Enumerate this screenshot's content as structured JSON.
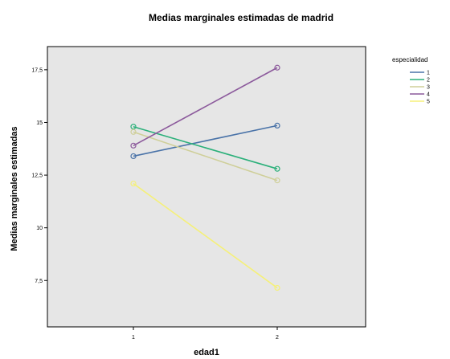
{
  "chart_data": {
    "type": "line",
    "title": "Medias marginales estimadas de madrid",
    "xlabel": "edad1",
    "ylabel": "Medias marginales estimadas",
    "categories": [
      "1",
      "2"
    ],
    "yticks": [
      "7,5",
      "10",
      "12,5",
      "15",
      "17,5"
    ],
    "ytick_values": [
      7.5,
      10,
      12.5,
      15,
      17.5
    ],
    "ylim": [
      5.3,
      18.6
    ],
    "legend_title": "especialidad",
    "legend_position": "right",
    "plot_background": "#e6e6e6",
    "series": [
      {
        "name": "1",
        "color": "#4a73a8",
        "values": [
          13.4,
          14.85
        ]
      },
      {
        "name": "2",
        "color": "#2bb07a",
        "values": [
          14.8,
          12.8
        ]
      },
      {
        "name": "3",
        "color": "#cfcf99",
        "values": [
          14.55,
          12.25
        ]
      },
      {
        "name": "4",
        "color": "#8c5a9c",
        "values": [
          13.9,
          17.6
        ]
      },
      {
        "name": "5",
        "color": "#f5f07a",
        "values": [
          12.1,
          7.15
        ]
      }
    ]
  }
}
